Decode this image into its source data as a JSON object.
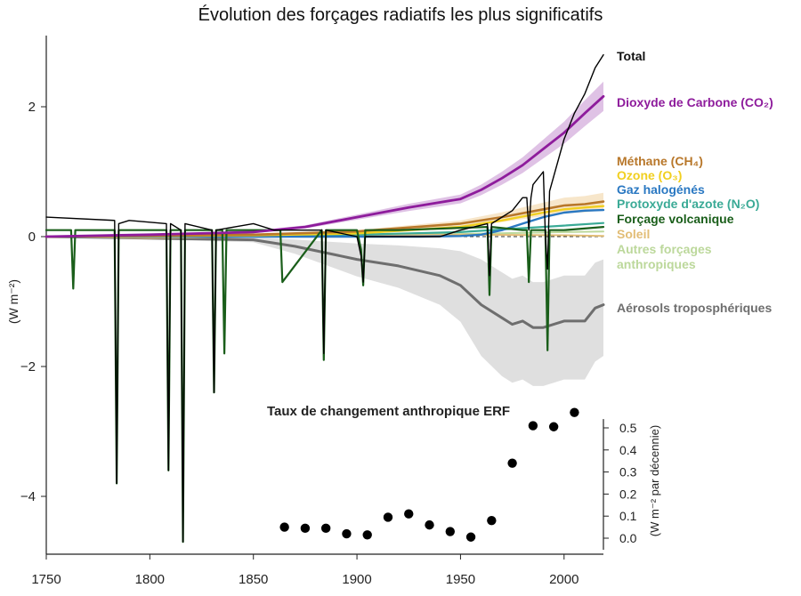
{
  "chart_data": [
    {
      "type": "line",
      "title": "Évolution des forçages radiatifs les plus significatifs",
      "xlabel": "",
      "ylabel": "(W m⁻²)",
      "xlim": [
        1750,
        2019
      ],
      "ylim": [
        -5,
        3
      ],
      "x_ticks": [
        "1750",
        "1800",
        "1850",
        "1900",
        "1950",
        "2000"
      ],
      "y_ticks": [
        "2",
        "0",
        "−2",
        "−4"
      ],
      "y_tick_values": [
        2,
        0,
        -2,
        -4
      ],
      "baseline_y": 0,
      "series": [
        {
          "name": "Total",
          "color": "#000000",
          "x": [
            1750,
            1783,
            1784,
            1785,
            1790,
            1808,
            1809,
            1810,
            1815,
            1816,
            1817,
            1830,
            1831,
            1832,
            1850,
            1860,
            1883,
            1884,
            1885,
            1900,
            1902,
            1903,
            1904,
            1920,
            1940,
            1950,
            1963,
            1964,
            1965,
            1970,
            1975,
            1980,
            1982,
            1983,
            1984,
            1985,
            1990,
            1991,
            1992,
            1993,
            2000,
            2005,
            2010,
            2015,
            2019
          ],
          "y": [
            0.3,
            0.25,
            -3.8,
            0.2,
            0.25,
            0.2,
            -3.6,
            0.2,
            0.1,
            -4.7,
            0.2,
            0.1,
            -2.4,
            0.1,
            0.2,
            0.1,
            0.1,
            -1.8,
            0.1,
            0.0,
            -0.3,
            -0.7,
            0.0,
            0.0,
            0.0,
            0.1,
            0.2,
            -0.6,
            0.2,
            0.3,
            0.4,
            0.6,
            0.6,
            0.1,
            0.6,
            0.8,
            1.0,
            0.0,
            -0.5,
            0.7,
            1.5,
            1.9,
            2.2,
            2.6,
            2.8
          ]
        },
        {
          "name": "Dioxyde de Carbone (CO₂)",
          "color": "#8e1c9c",
          "x": [
            1750,
            1800,
            1850,
            1875,
            1900,
            1925,
            1950,
            1960,
            1970,
            1980,
            1990,
            2000,
            2010,
            2019
          ],
          "y": [
            0.0,
            0.03,
            0.07,
            0.15,
            0.3,
            0.45,
            0.58,
            0.72,
            0.9,
            1.1,
            1.35,
            1.6,
            1.9,
            2.16
          ]
        },
        {
          "name": "Méthane (CH₄)",
          "color": "#b8772a",
          "x": [
            1750,
            1850,
            1900,
            1950,
            1970,
            1990,
            2000,
            2010,
            2019
          ],
          "y": [
            0.0,
            0.03,
            0.08,
            0.2,
            0.3,
            0.42,
            0.48,
            0.5,
            0.54
          ]
        },
        {
          "name": "Ozone (O₃)",
          "color": "#f1cf1f",
          "x": [
            1750,
            1850,
            1900,
            1950,
            1970,
            1990,
            2000,
            2010,
            2019
          ],
          "y": [
            0.0,
            0.02,
            0.05,
            0.15,
            0.25,
            0.37,
            0.42,
            0.45,
            0.47
          ]
        },
        {
          "name": "Gaz halogénés",
          "color": "#2a78c2",
          "x": [
            1750,
            1930,
            1950,
            1960,
            1970,
            1980,
            1990,
            2000,
            2010,
            2019
          ],
          "y": [
            0.0,
            0.0,
            0.01,
            0.03,
            0.1,
            0.2,
            0.3,
            0.37,
            0.4,
            0.41
          ]
        },
        {
          "name": "Protoxyde d'azote (N₂O)",
          "color": "#3aaa96",
          "x": [
            1750,
            1850,
            1900,
            1950,
            1980,
            2000,
            2019
          ],
          "y": [
            0.0,
            0.01,
            0.03,
            0.07,
            0.13,
            0.17,
            0.21
          ]
        },
        {
          "name": "Forçage volcanique",
          "color": "#1a5e1a",
          "x": [
            1750,
            1762,
            1763,
            1764,
            1783,
            1784,
            1785,
            1808,
            1809,
            1810,
            1815,
            1816,
            1817,
            1830,
            1831,
            1832,
            1835,
            1836,
            1837,
            1860,
            1863,
            1864,
            1883,
            1884,
            1885,
            1900,
            1902,
            1903,
            1904,
            1920,
            1963,
            1964,
            1965,
            1980,
            1982,
            1983,
            1984,
            1990,
            1991,
            1992,
            1993,
            2000,
            2019
          ],
          "y": [
            0.1,
            0.1,
            -0.8,
            0.1,
            0.1,
            -3.8,
            0.1,
            0.1,
            -3.6,
            0.1,
            0.1,
            -4.7,
            0.1,
            0.1,
            -2.4,
            0.1,
            0.1,
            -1.8,
            0.1,
            0.1,
            0.1,
            -0.7,
            0.1,
            -1.9,
            0.1,
            0.1,
            -0.2,
            -0.75,
            0.1,
            0.1,
            0.15,
            -0.9,
            0.15,
            0.1,
            0.1,
            -0.7,
            0.1,
            0.1,
            0.1,
            -1.75,
            0.1,
            0.1,
            0.15
          ]
        },
        {
          "name": "Soleil",
          "color": "#e2bd76",
          "x": [
            1750,
            1800,
            1850,
            1900,
            1950,
            2000,
            2019
          ],
          "y": [
            0.0,
            -0.02,
            0.0,
            0.01,
            0.03,
            0.02,
            0.01
          ]
        },
        {
          "name": "Autres forçages anthropiques",
          "color": "#bcd89b",
          "x": [
            1750,
            1850,
            1900,
            1950,
            2000,
            2019
          ],
          "y": [
            0.0,
            0.0,
            0.02,
            0.04,
            0.07,
            0.08
          ]
        },
        {
          "name": "Aérosols troposphériques",
          "color": "#6e6e6e",
          "x": [
            1750,
            1850,
            1870,
            1900,
            1920,
            1940,
            1950,
            1960,
            1970,
            1975,
            1980,
            1985,
            1990,
            2000,
            2010,
            2015,
            2019
          ],
          "y": [
            0.0,
            -0.05,
            -0.15,
            -0.35,
            -0.45,
            -0.6,
            -0.75,
            -1.05,
            -1.25,
            -1.35,
            -1.3,
            -1.4,
            -1.4,
            -1.3,
            -1.3,
            -1.1,
            -1.05
          ]
        }
      ]
    },
    {
      "type": "scatter",
      "title": "Taux de changement anthropique ERF",
      "xlabel": "",
      "ylabel": "(W m⁻² par décennie)",
      "ylim": [
        -0.02,
        0.54
      ],
      "y_ticks": [
        "0.0",
        "0.1",
        "0.2",
        "0.3",
        "0.4",
        "0.5"
      ],
      "y_tick_values": [
        0,
        0.1,
        0.2,
        0.3,
        0.4,
        0.5
      ],
      "x": [
        1865,
        1875,
        1885,
        1895,
        1905,
        1915,
        1925,
        1935,
        1945,
        1955,
        1965,
        1975,
        1985,
        1995,
        2005
      ],
      "y": [
        0.05,
        0.045,
        0.045,
        0.02,
        0.015,
        0.095,
        0.11,
        0.06,
        0.03,
        0.005,
        0.08,
        0.34,
        0.51,
        0.505,
        0.57
      ]
    }
  ]
}
